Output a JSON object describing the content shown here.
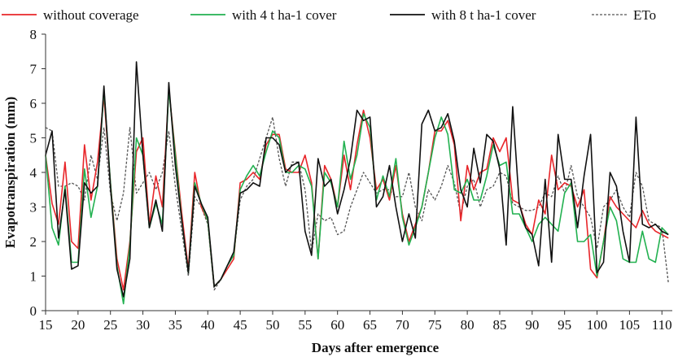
{
  "colors": {
    "without_coverage": "#e8262a",
    "with_4t_cover": "#22b150",
    "with_8t_cover": "#111111",
    "eto": "#555555",
    "axis": "#333333"
  },
  "chart_data": {
    "type": "line",
    "xlabel": "Days after emergence",
    "ylabel": "Evapotranspiration (mm)",
    "xlim": [
      15,
      111
    ],
    "ylim": [
      0,
      8
    ],
    "xticks": [
      15,
      20,
      25,
      30,
      35,
      40,
      45,
      50,
      55,
      60,
      65,
      70,
      75,
      80,
      85,
      90,
      95,
      100,
      105,
      110
    ],
    "yticks": [
      0,
      1,
      2,
      3,
      4,
      5,
      6,
      7,
      8
    ],
    "grid": false,
    "legend_position": "top",
    "series": [
      {
        "name": "without coverage",
        "color_key": "without_coverage",
        "dash": "solid",
        "x": [
          15,
          16,
          17,
          18,
          19,
          20,
          21,
          22,
          23,
          24,
          25,
          26,
          27,
          28,
          29,
          30,
          31,
          32,
          33,
          34,
          35,
          36,
          37,
          38,
          39,
          40,
          41,
          42,
          43,
          44,
          45,
          46,
          47,
          48,
          49,
          50,
          51,
          52,
          53,
          54,
          55,
          56,
          57,
          58,
          59,
          60,
          61,
          62,
          63,
          64,
          65,
          66,
          67,
          68,
          69,
          70,
          71,
          72,
          73,
          74,
          75,
          76,
          77,
          78,
          79,
          80,
          81,
          82,
          83,
          84,
          85,
          86,
          87,
          88,
          89,
          90,
          91,
          92,
          93,
          94,
          95,
          96,
          97,
          98,
          99,
          100,
          101,
          102,
          103,
          104,
          105,
          106,
          107,
          108,
          109,
          110,
          111
        ],
        "y": [
          4.5,
          3.1,
          2.5,
          4.3,
          2.0,
          1.8,
          4.8,
          3.2,
          4.3,
          6.2,
          3.7,
          1.5,
          0.6,
          2.0,
          4.6,
          5.0,
          2.5,
          3.9,
          3.0,
          6.4,
          4.6,
          2.8,
          1.2,
          4.0,
          3.0,
          2.6,
          0.7,
          0.9,
          1.2,
          1.5,
          3.7,
          3.8,
          4.0,
          3.8,
          4.8,
          5.1,
          5.1,
          4.1,
          4.0,
          4.0,
          4.5,
          3.7,
          1.5,
          4.2,
          3.8,
          3.0,
          4.5,
          3.5,
          4.8,
          5.8,
          5.0,
          3.5,
          3.8,
          3.2,
          4.2,
          2.8,
          2.0,
          2.5,
          3.0,
          4.0,
          5.2,
          5.2,
          5.5,
          4.8,
          2.6,
          4.2,
          3.5,
          4.0,
          4.1,
          5.0,
          4.6,
          5.0,
          3.2,
          3.1,
          2.5,
          2.2,
          3.2,
          2.8,
          4.5,
          3.5,
          3.7,
          3.6,
          3.0,
          3.5,
          1.2,
          0.95,
          2.0,
          3.3,
          3.0,
          2.8,
          2.6,
          2.4,
          2.9,
          2.5,
          2.3,
          2.2,
          2.1
        ]
      },
      {
        "name": "with 4 t ha-1 cover",
        "color_key": "with_4t_cover",
        "dash": "solid",
        "x": [
          15,
          16,
          17,
          18,
          19,
          20,
          21,
          22,
          23,
          24,
          25,
          26,
          27,
          28,
          29,
          30,
          31,
          32,
          33,
          34,
          35,
          36,
          37,
          38,
          39,
          40,
          41,
          42,
          43,
          44,
          45,
          46,
          47,
          48,
          49,
          50,
          51,
          52,
          53,
          54,
          55,
          56,
          57,
          58,
          59,
          60,
          61,
          62,
          63,
          64,
          65,
          66,
          67,
          68,
          69,
          70,
          71,
          72,
          73,
          74,
          75,
          76,
          77,
          78,
          79,
          80,
          81,
          82,
          83,
          84,
          85,
          86,
          87,
          88,
          89,
          90,
          91,
          92,
          93,
          94,
          95,
          96,
          97,
          98,
          99,
          100,
          101,
          102,
          103,
          104,
          105,
          106,
          107,
          108,
          109,
          110,
          111
        ],
        "y": [
          4.5,
          2.4,
          1.9,
          3.6,
          1.4,
          1.4,
          4.1,
          2.7,
          3.6,
          6.4,
          3.7,
          1.3,
          0.2,
          1.9,
          5.0,
          4.5,
          2.4,
          3.1,
          2.5,
          6.4,
          4.5,
          2.6,
          1.1,
          3.7,
          3.1,
          2.6,
          0.7,
          0.9,
          1.3,
          1.6,
          3.5,
          3.9,
          4.2,
          3.9,
          4.6,
          5.2,
          5.0,
          4.0,
          4.0,
          4.2,
          4.1,
          3.6,
          1.5,
          4.0,
          3.7,
          3.0,
          4.9,
          3.8,
          4.5,
          5.7,
          5.3,
          3.2,
          3.9,
          3.3,
          4.4,
          2.7,
          1.9,
          2.4,
          3.0,
          4.0,
          5.0,
          5.6,
          5.1,
          3.5,
          3.4,
          3.8,
          3.2,
          3.2,
          3.9,
          4.8,
          4.2,
          4.3,
          2.8,
          2.8,
          2.4,
          2.0,
          2.5,
          2.7,
          2.5,
          2.3,
          3.4,
          3.7,
          2.0,
          2.0,
          2.2,
          1.0,
          2.0,
          3.0,
          2.6,
          1.5,
          1.4,
          1.4,
          2.3,
          1.5,
          1.4,
          2.4,
          2.2
        ]
      },
      {
        "name": "with 8 t ha-1 cover",
        "color_key": "with_8t_cover",
        "dash": "solid",
        "x": [
          15,
          16,
          17,
          18,
          19,
          20,
          21,
          22,
          23,
          24,
          25,
          26,
          27,
          28,
          29,
          30,
          31,
          32,
          33,
          34,
          35,
          36,
          37,
          38,
          39,
          40,
          41,
          42,
          43,
          44,
          45,
          46,
          47,
          48,
          49,
          50,
          51,
          52,
          53,
          54,
          55,
          56,
          57,
          58,
          59,
          60,
          61,
          62,
          63,
          64,
          65,
          66,
          67,
          68,
          69,
          70,
          71,
          72,
          73,
          74,
          75,
          76,
          77,
          78,
          79,
          80,
          81,
          82,
          83,
          84,
          85,
          86,
          87,
          88,
          89,
          90,
          91,
          92,
          93,
          94,
          95,
          96,
          97,
          98,
          99,
          100,
          101,
          102,
          103,
          104,
          105,
          106,
          107,
          108,
          109,
          110,
          111
        ],
        "y": [
          4.5,
          5.2,
          2.1,
          3.5,
          1.2,
          1.3,
          3.7,
          3.4,
          3.6,
          6.5,
          3.6,
          1.2,
          0.4,
          1.5,
          7.2,
          4.5,
          2.4,
          3.2,
          2.3,
          6.6,
          4.2,
          2.6,
          1.1,
          3.6,
          3.1,
          2.7,
          0.7,
          0.9,
          1.3,
          1.7,
          3.4,
          3.5,
          3.7,
          3.6,
          5.0,
          5.0,
          4.8,
          4.0,
          4.2,
          4.3,
          2.3,
          1.6,
          4.4,
          3.6,
          3.8,
          2.8,
          3.5,
          4.4,
          5.8,
          5.5,
          5.6,
          3.0,
          3.3,
          4.2,
          3.0,
          2.0,
          2.8,
          2.1,
          5.4,
          5.8,
          5.2,
          5.3,
          5.7,
          4.9,
          3.5,
          3.0,
          4.7,
          3.7,
          5.1,
          4.9,
          4.1,
          1.9,
          5.9,
          3.1,
          2.4,
          2.2,
          1.3,
          3.8,
          1.4,
          5.1,
          3.8,
          3.8,
          2.4,
          3.9,
          5.1,
          1.1,
          1.4,
          4.0,
          3.6,
          2.3,
          1.4,
          5.6,
          2.5,
          2.4,
          2.5,
          2.3,
          2.2
        ]
      },
      {
        "name": "ETo",
        "color_key": "eto",
        "dash": "dotted",
        "x": [
          15,
          16,
          17,
          18,
          19,
          20,
          21,
          22,
          23,
          24,
          25,
          26,
          27,
          28,
          29,
          30,
          31,
          32,
          33,
          34,
          35,
          36,
          37,
          38,
          39,
          40,
          41,
          42,
          43,
          44,
          45,
          46,
          47,
          48,
          49,
          50,
          51,
          52,
          53,
          54,
          55,
          56,
          57,
          58,
          59,
          60,
          61,
          62,
          63,
          64,
          65,
          66,
          67,
          68,
          69,
          70,
          71,
          72,
          73,
          74,
          75,
          76,
          77,
          78,
          79,
          80,
          81,
          82,
          83,
          84,
          85,
          86,
          87,
          88,
          89,
          90,
          91,
          92,
          93,
          94,
          95,
          96,
          97,
          98,
          99,
          100,
          101,
          102,
          103,
          104,
          105,
          106,
          107,
          108,
          109,
          110,
          111
        ],
        "y": [
          5.3,
          5.2,
          3.6,
          3.6,
          3.7,
          3.6,
          3.2,
          4.5,
          3.8,
          5.3,
          3.4,
          2.6,
          3.4,
          5.3,
          3.4,
          3.7,
          4.0,
          3.5,
          4.0,
          5.2,
          3.6,
          2.3,
          1.0,
          3.3,
          3.0,
          2.5,
          0.6,
          0.9,
          1.3,
          1.6,
          3.2,
          3.6,
          3.8,
          4.4,
          5.0,
          5.6,
          4.4,
          3.6,
          4.3,
          4.3,
          3.5,
          1.7,
          2.8,
          2.6,
          2.7,
          2.2,
          2.3,
          3.0,
          3.5,
          4.0,
          3.7,
          3.4,
          3.5,
          3.5,
          3.3,
          3.3,
          4.0,
          3.0,
          2.6,
          3.5,
          3.2,
          3.6,
          4.2,
          3.7,
          2.8,
          3.6,
          3.8,
          3.0,
          3.5,
          3.6,
          4.0,
          3.9,
          3.1,
          3.0,
          2.9,
          2.9,
          3.0,
          3.4,
          3.3,
          3.9,
          3.4,
          4.2,
          3.3,
          3.0,
          2.7,
          1.8,
          3.0,
          3.2,
          3.5,
          3.0,
          2.7,
          4.0,
          3.6,
          2.6,
          2.5,
          2.4,
          0.8
        ]
      }
    ]
  }
}
